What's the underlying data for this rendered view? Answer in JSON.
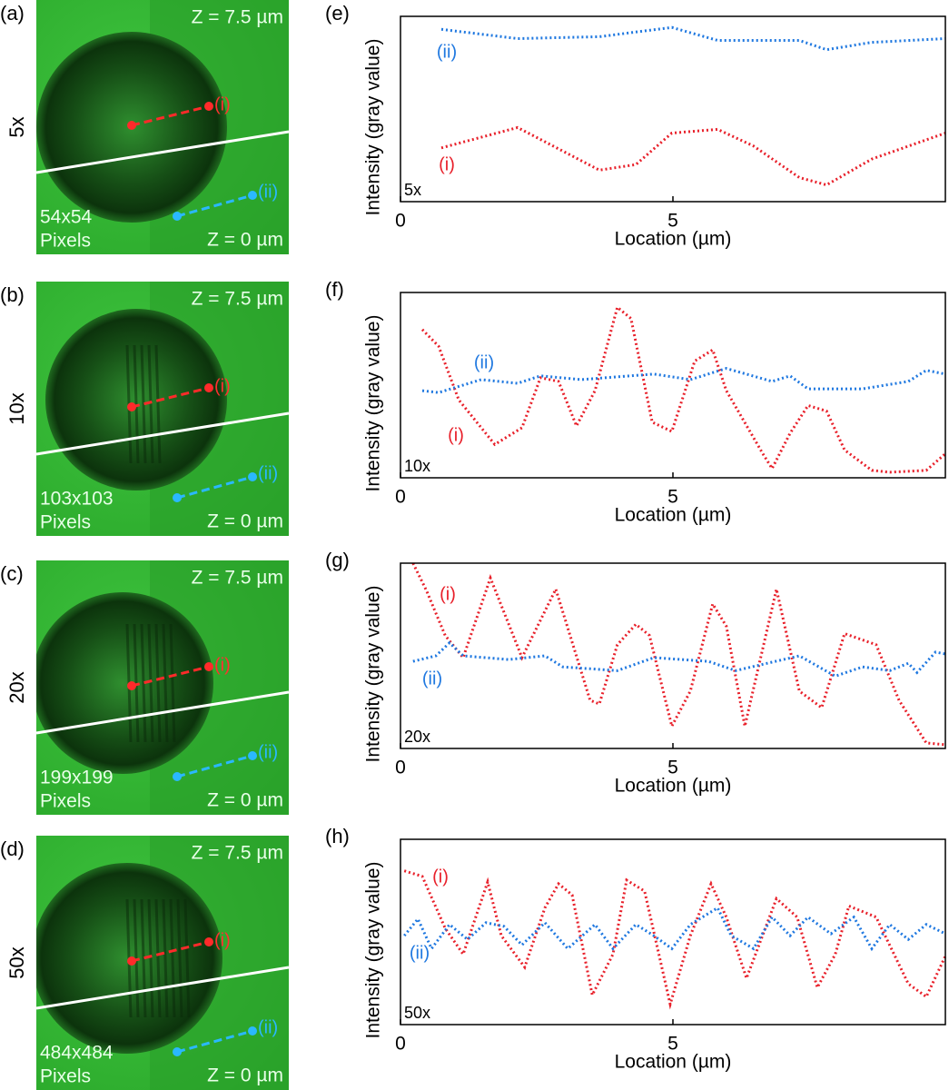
{
  "images": [
    {
      "label": "(a)",
      "magnification": "5x",
      "z_top": "Z = 7.5 µm",
      "z_bottom": "Z = 0 µm",
      "pixels": "54x54",
      "pixels_unit": "Pixels",
      "line_labels": [
        "(i)",
        "(ii)"
      ]
    },
    {
      "label": "(b)",
      "magnification": "10x",
      "z_top": "Z = 7.5 µm",
      "z_bottom": "Z = 0 µm",
      "pixels": "103x103",
      "pixels_unit": "Pixels",
      "line_labels": [
        "(i)",
        "(ii)"
      ]
    },
    {
      "label": "(c)",
      "magnification": "20x",
      "z_top": "Z = 7.5 µm",
      "z_bottom": "Z = 0 µm",
      "pixels": "199x199",
      "pixels_unit": "Pixels",
      "line_labels": [
        "(i)",
        "(ii)"
      ]
    },
    {
      "label": "(d)",
      "magnification": "50x",
      "z_top": "Z = 7.5 µm",
      "z_bottom": "Z = 0 µm",
      "pixels": "484x484",
      "pixels_unit": "Pixels",
      "line_labels": [
        "(i)",
        "(ii)"
      ]
    }
  ],
  "chart_data": [
    {
      "type": "line",
      "panel": "(e)",
      "corner_label": "5x",
      "xlabel": "Location (µm)",
      "ylabel": "Intensity (gray value)",
      "xlim": [
        0,
        10
      ],
      "xticks": [
        0,
        5
      ],
      "ylim": [
        0,
        100
      ],
      "series": [
        {
          "name": "(i)",
          "color": "#e8202a",
          "x": [
            0.75,
            2.15,
            3.65,
            4.32,
            4.98,
            5.82,
            6.48,
            7.32,
            7.82,
            8.65,
            10
          ],
          "values": [
            29,
            40,
            17,
            20,
            37,
            39,
            30,
            13,
            9,
            23,
            37
          ]
        },
        {
          "name": "(ii)",
          "color": "#1f78e0",
          "x": [
            0.75,
            2.15,
            3.65,
            4.98,
            5.82,
            7.32,
            7.82,
            8.65,
            10
          ],
          "values": [
            93,
            88,
            89,
            94,
            87,
            87,
            82,
            86,
            88
          ]
        }
      ]
    },
    {
      "type": "line",
      "panel": "(f)",
      "corner_label": "10x",
      "xlabel": "Location (µm)",
      "ylabel": "Intensity (gray value)",
      "xlim": [
        0,
        10
      ],
      "xticks": [
        0,
        5
      ],
      "ylim": [
        0,
        100
      ],
      "series": [
        {
          "name": "(i)",
          "color": "#e8202a",
          "x": [
            0.4,
            0.7,
            1.07,
            1.73,
            2.23,
            2.57,
            2.9,
            3.23,
            3.57,
            3.98,
            4.23,
            4.62,
            4.98,
            5.4,
            5.73,
            5.98,
            6.65,
            6.82,
            7.15,
            7.48,
            7.82,
            8.15,
            8.65,
            8.98,
            9.65,
            10
          ],
          "values": [
            80,
            71,
            42,
            18,
            27,
            54,
            52,
            28,
            47,
            92,
            86,
            30,
            25,
            63,
            69,
            47,
            13,
            5,
            24,
            39,
            36,
            15,
            4,
            3,
            4,
            13
          ]
        },
        {
          "name": "(ii)",
          "color": "#1f78e0",
          "x": [
            0.4,
            0.7,
            1.48,
            2.15,
            2.57,
            3.32,
            4.65,
            5.32,
            5.98,
            6.82,
            7.15,
            7.48,
            8.48,
            9.32,
            9.65,
            10
          ],
          "values": [
            47,
            46,
            53,
            51,
            55,
            53,
            56,
            53,
            59,
            52,
            55,
            48,
            48,
            52,
            58,
            56
          ]
        }
      ]
    },
    {
      "type": "line",
      "panel": "(g)",
      "corner_label": "20x",
      "xlabel": "Location (µm)",
      "ylabel": "Intensity (gray value)",
      "xlim": [
        0,
        10
      ],
      "xticks": [
        0,
        5
      ],
      "ylim": [
        0,
        100
      ],
      "series": [
        {
          "name": "(i)",
          "color": "#e8202a",
          "x": [
            0.23,
            0.48,
            0.82,
            1.15,
            1.65,
            2.23,
            2.85,
            3.48,
            3.65,
            3.98,
            4.32,
            4.57,
            4.98,
            5.32,
            5.73,
            5.98,
            6.32,
            6.9,
            7.32,
            7.73,
            8.15,
            8.73,
            9.15,
            9.65,
            10
          ],
          "values": [
            100,
            85,
            61,
            49,
            92,
            49,
            86,
            26,
            24,
            56,
            67,
            61,
            12,
            31,
            78,
            66,
            12,
            86,
            31,
            22,
            62,
            56,
            26,
            3,
            2
          ]
        },
        {
          "name": "(ii)",
          "color": "#1f78e0",
          "x": [
            0.23,
            0.65,
            0.9,
            1.15,
            1.98,
            2.65,
            2.98,
            3.98,
            4.65,
            5.65,
            6.15,
            7.32,
            7.98,
            8.48,
            8.98,
            9.32,
            9.48,
            9.82,
            10
          ],
          "values": [
            47,
            50,
            57,
            50,
            48,
            50,
            44,
            42,
            49,
            47,
            42,
            50,
            39,
            44,
            42,
            46,
            41,
            52,
            51
          ]
        }
      ]
    },
    {
      "type": "line",
      "panel": "(h)",
      "corner_label": "50x",
      "xlabel": "Location (µm)",
      "ylabel": "Intensity (gray value)",
      "xlim": [
        0,
        10
      ],
      "xticks": [
        0,
        5
      ],
      "ylim": [
        0,
        100
      ],
      "series": [
        {
          "name": "(i)",
          "color": "#e8202a",
          "x": [
            0.07,
            0.4,
            0.82,
            1.15,
            1.6,
            1.85,
            2.28,
            2.65,
            2.9,
            3.15,
            3.52,
            3.9,
            4.15,
            4.48,
            4.95,
            5.32,
            5.7,
            5.98,
            6.35,
            6.9,
            7.28,
            7.65,
            7.98,
            8.23,
            8.73,
            9.32,
            9.65,
            10
          ],
          "values": [
            83,
            80,
            52,
            38,
            77,
            48,
            31,
            63,
            76,
            70,
            16,
            38,
            78,
            72,
            11,
            48,
            76,
            58,
            25,
            68,
            58,
            20,
            38,
            64,
            58,
            22,
            15,
            37
          ]
        },
        {
          "name": "(ii)",
          "color": "#1f78e0",
          "x": [
            0.07,
            0.32,
            0.57,
            0.9,
            1.23,
            1.57,
            1.9,
            2.23,
            2.65,
            3.07,
            3.57,
            3.9,
            4.32,
            4.65,
            4.98,
            5.32,
            5.82,
            6.07,
            6.48,
            6.82,
            7.15,
            7.48,
            7.9,
            8.32,
            8.65,
            8.98,
            9.32,
            9.65,
            10
          ],
          "values": [
            48,
            57,
            41,
            54,
            46,
            55,
            53,
            43,
            55,
            41,
            54,
            41,
            54,
            48,
            41,
            54,
            63,
            48,
            41,
            58,
            48,
            58,
            49,
            58,
            41,
            54,
            46,
            54,
            49
          ]
        }
      ]
    }
  ]
}
